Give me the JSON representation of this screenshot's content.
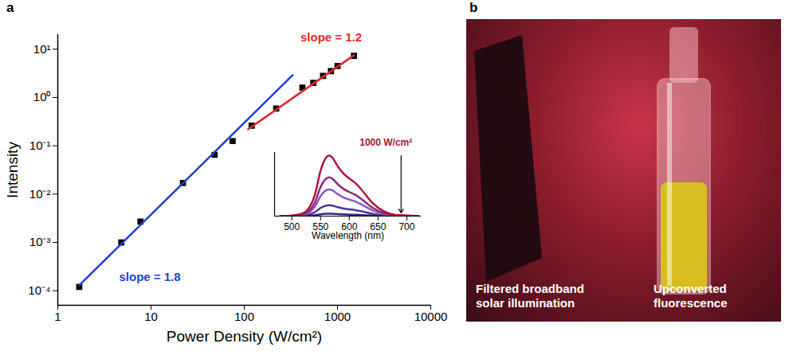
{
  "chart_data": [
    {
      "type": "scatter",
      "panel_label": "a",
      "xlabel": "Power Density (W/cm²)",
      "ylabel": "Intensity",
      "log": true,
      "xlim": [
        1,
        10000
      ],
      "xticks": [
        1,
        10,
        100,
        1000,
        10000
      ],
      "ylim": [
        5e-05,
        20
      ],
      "yticks": [
        {
          "value": 10,
          "label": "10¹"
        },
        {
          "value": 1,
          "label": "10⁰"
        },
        {
          "value": 0.1,
          "label": "10⁻¹"
        },
        {
          "value": 0.01,
          "label": "10⁻²"
        },
        {
          "value": 0.001,
          "label": "10⁻³"
        },
        {
          "value": 0.0001,
          "label": "10⁻⁴"
        }
      ],
      "grid": false,
      "series": [
        {
          "type": "scatter",
          "marker": "square",
          "color": "#000000",
          "x": [
            1.7,
            4.8,
            7.7,
            22,
            48,
            75,
            120,
            220,
            420,
            550,
            700,
            850,
            1000,
            1500
          ],
          "values": [
            0.00012,
            0.001,
            0.0027,
            0.017,
            0.065,
            0.125,
            0.26,
            0.59,
            1.6,
            2.0,
            2.8,
            3.5,
            4.5,
            7.3
          ]
        },
        {
          "type": "line",
          "name": "slope = 1.8",
          "color": "#1f3fd0",
          "line_style": "solid",
          "x": [
            1.7,
            330
          ],
          "values": [
            0.00013,
            2.9
          ]
        },
        {
          "type": "line",
          "name": "slope = 1.2",
          "color": "#e0282e",
          "line_style": "solid",
          "x": [
            110,
            1500
          ],
          "values": [
            0.22,
            7.5
          ]
        }
      ]
    },
    {
      "type": "line",
      "xlabel": "Wavelength (nm)",
      "xlim": [
        470,
        725
      ],
      "xticks": [
        500,
        550,
        600,
        650,
        700
      ],
      "ylim": [
        0,
        1.05
      ],
      "tick_labels": "x",
      "grid": false,
      "x": [
        480,
        500,
        520,
        540,
        550,
        560,
        565,
        570,
        580,
        590,
        600,
        610,
        620,
        640,
        660,
        680,
        700,
        720
      ],
      "series": [
        {
          "color": "#2b2a7a",
          "values": [
            0,
            0,
            0.002,
            0.014,
            0.03,
            0.039,
            0.04,
            0.039,
            0.033,
            0.028,
            0.025,
            0.022,
            0.018,
            0.009,
            0.003,
            0.001,
            0,
            0
          ]
        },
        {
          "color": "#4b3596",
          "values": [
            0,
            0.002,
            0.009,
            0.063,
            0.135,
            0.175,
            0.18,
            0.175,
            0.148,
            0.126,
            0.112,
            0.099,
            0.081,
            0.04,
            0.014,
            0.004,
            0.002,
            0
          ]
        },
        {
          "color": "#8a55c8",
          "values": [
            0,
            0.004,
            0.022,
            0.154,
            0.33,
            0.427,
            0.44,
            0.427,
            0.361,
            0.308,
            0.273,
            0.242,
            0.198,
            0.097,
            0.035,
            0.009,
            0.004,
            0
          ]
        },
        {
          "color": "#8e2a78",
          "values": [
            0,
            0.006,
            0.032,
            0.224,
            0.48,
            0.621,
            0.64,
            0.621,
            0.525,
            0.448,
            0.397,
            0.352,
            0.288,
            0.141,
            0.051,
            0.013,
            0.006,
            0
          ]
        },
        {
          "color": "#b0143c",
          "values": [
            0,
            0.01,
            0.05,
            0.35,
            0.75,
            0.97,
            1.0,
            0.97,
            0.82,
            0.7,
            0.62,
            0.55,
            0.45,
            0.22,
            0.08,
            0.02,
            0.01,
            0
          ]
        }
      ],
      "annotations": [
        {
          "text": "1000 W/cm²",
          "x": 690,
          "color": "#a0183a"
        }
      ]
    }
  ],
  "photo": {
    "panel_label": "b",
    "captions": [
      "Filtered broadband solar illumination",
      "Upconverted fluorescence"
    ]
  }
}
